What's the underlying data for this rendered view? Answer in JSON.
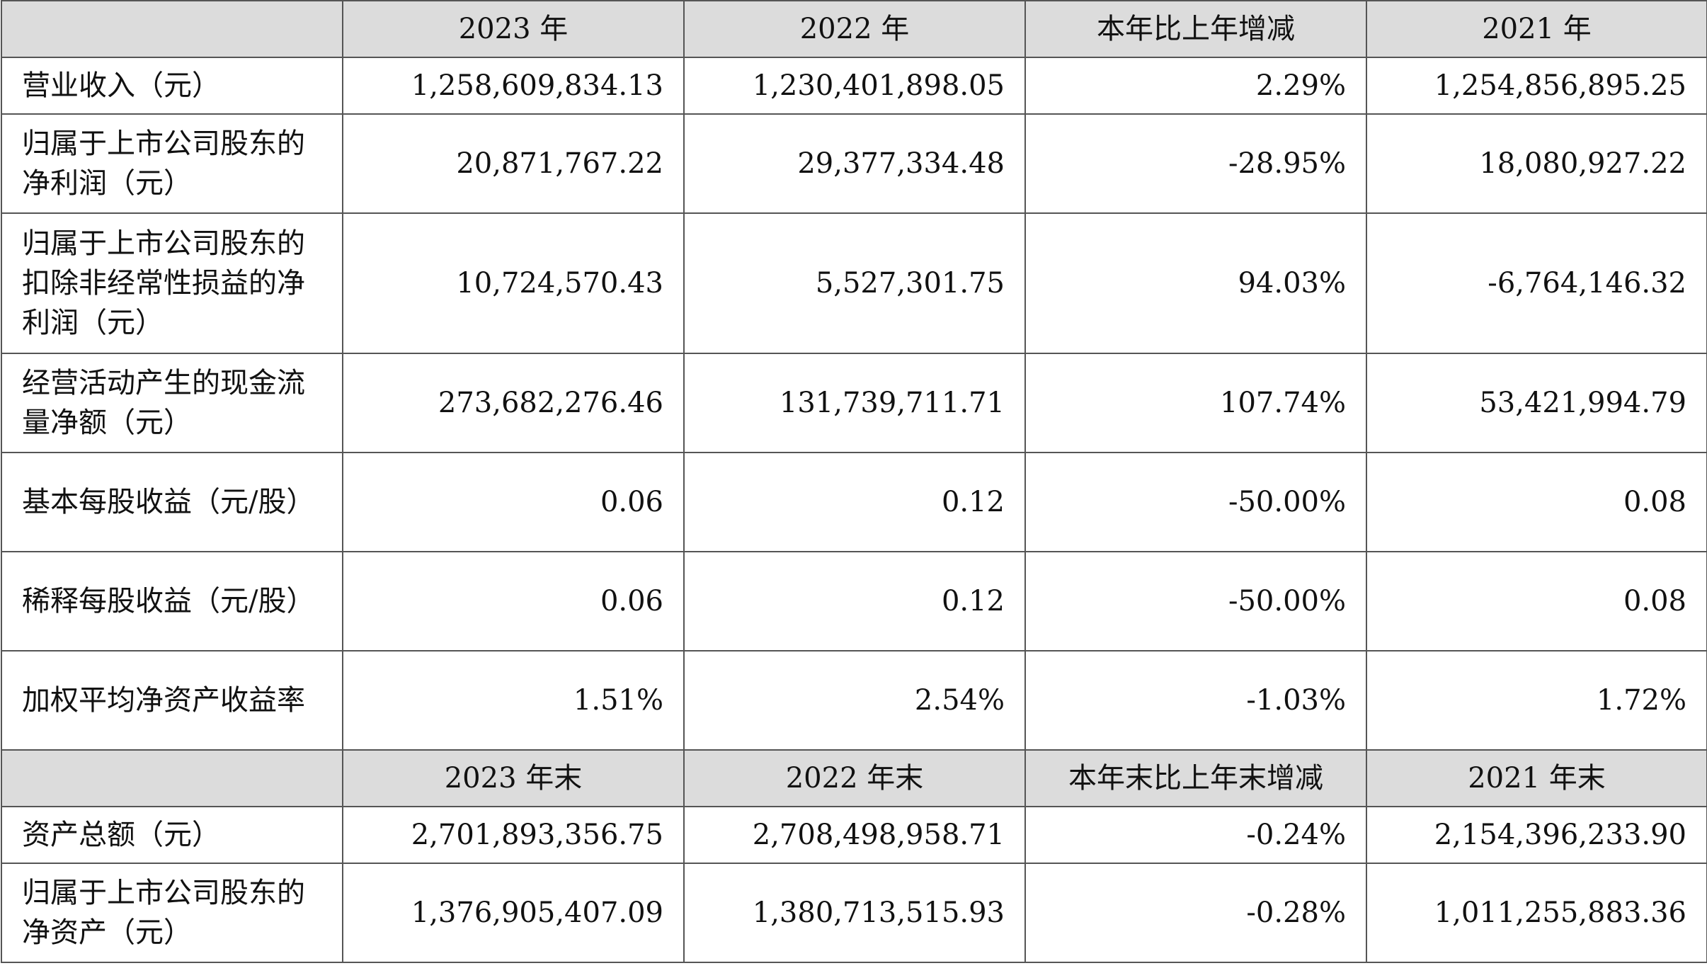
{
  "header1": {
    "corner": "",
    "col1": "2023 年",
    "col2": "2022 年",
    "col3": "本年比上年增减",
    "col4": "2021 年"
  },
  "rows1": [
    {
      "label": "营业收入（元）",
      "v2023": "1,258,609,834.13",
      "v2022": "1,230,401,898.05",
      "change": "2.29%",
      "v2021": "1,254,856,895.25"
    },
    {
      "label": "归属于上市公司股东的净利润（元）",
      "v2023": "20,871,767.22",
      "v2022": "29,377,334.48",
      "change": "-28.95%",
      "v2021": "18,080,927.22"
    },
    {
      "label": "归属于上市公司股东的扣除非经常性损益的净利润（元）",
      "v2023": "10,724,570.43",
      "v2022": "5,527,301.75",
      "change": "94.03%",
      "v2021": "-6,764,146.32"
    },
    {
      "label": "经营活动产生的现金流量净额（元）",
      "v2023": "273,682,276.46",
      "v2022": "131,739,711.71",
      "change": "107.74%",
      "v2021": "53,421,994.79"
    },
    {
      "label": "基本每股收益（元/股）",
      "v2023": "0.06",
      "v2022": "0.12",
      "change": "-50.00%",
      "v2021": "0.08"
    },
    {
      "label": "稀释每股收益（元/股）",
      "v2023": "0.06",
      "v2022": "0.12",
      "change": "-50.00%",
      "v2021": "0.08"
    },
    {
      "label": "加权平均净资产收益率",
      "v2023": "1.51%",
      "v2022": "2.54%",
      "change": "-1.03%",
      "v2021": "1.72%"
    }
  ],
  "header2": {
    "corner": "",
    "col1": "2023 年末",
    "col2": "2022 年末",
    "col3": "本年末比上年末增减",
    "col4": "2021 年末"
  },
  "rows2": [
    {
      "label": "资产总额（元）",
      "v2023": "2,701,893,356.75",
      "v2022": "2,708,498,958.71",
      "change": "-0.24%",
      "v2021": "2,154,396,233.90"
    },
    {
      "label": "归属于上市公司股东的净资产（元）",
      "v2023": "1,376,905,407.09",
      "v2022": "1,380,713,515.93",
      "change": "-0.28%",
      "v2021": "1,011,255,883.36"
    }
  ]
}
